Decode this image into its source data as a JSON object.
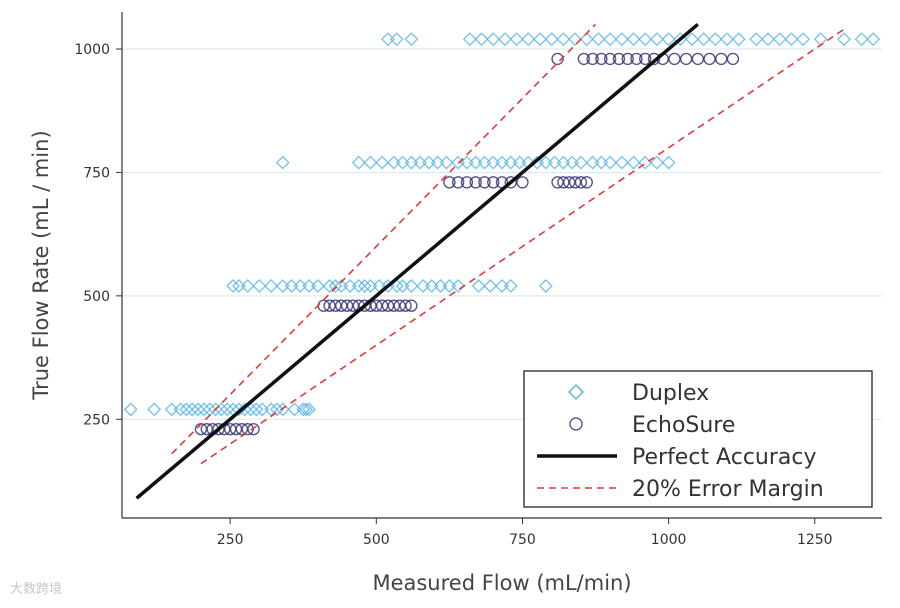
{
  "chart_data": {
    "type": "scatter",
    "xlabel": "Measured Flow (mL/min)",
    "ylabel": "True Flow Rate (mL / min)",
    "xlim": [
      65,
      1365
    ],
    "ylim": [
      50,
      1075
    ],
    "xticks": [
      250,
      500,
      750,
      1000,
      1250
    ],
    "yticks": [
      250,
      500,
      750,
      1000
    ],
    "grid": "horizontal",
    "legend_position": "bottom-right",
    "series": [
      {
        "name": "Duplex",
        "marker": "diamond",
        "color": "#5bb7e8",
        "groups": [
          {
            "y": 270,
            "x": [
              80,
              120,
              150,
              165,
              175,
              185,
              195,
              205,
              215,
              225,
              235,
              245,
              255,
              265,
              275,
              285,
              295,
              305,
              320,
              330,
              340,
              360,
              375,
              380,
              385
            ]
          },
          {
            "y": 520,
            "x": [
              255,
              265,
              280,
              300,
              320,
              340,
              355,
              370,
              385,
              400,
              420,
              430,
              440,
              455,
              470,
              480,
              490,
              505,
              520,
              535,
              545,
              560,
              580,
              595,
              610,
              625,
              640,
              675,
              695,
              715,
              730,
              790
            ]
          },
          {
            "y": 770,
            "x": [
              340,
              470,
              490,
              510,
              530,
              545,
              560,
              575,
              590,
              605,
              620,
              640,
              655,
              670,
              685,
              700,
              715,
              730,
              745,
              760,
              775,
              790,
              805,
              820,
              835,
              850,
              870,
              885,
              900,
              920,
              940,
              960,
              980,
              1000
            ]
          },
          {
            "y": 1020,
            "x": [
              520,
              535,
              560,
              660,
              680,
              700,
              720,
              740,
              760,
              780,
              800,
              820,
              840,
              860,
              880,
              900,
              920,
              940,
              960,
              980,
              1000,
              1020,
              1040,
              1060,
              1080,
              1100,
              1120,
              1150,
              1170,
              1190,
              1210,
              1230,
              1260,
              1300,
              1330,
              1350
            ]
          }
        ]
      },
      {
        "name": "EchoSure",
        "marker": "circle",
        "color": "#2c2c6e",
        "groups": [
          {
            "y": 230,
            "x": [
              200,
              210,
              220,
              230,
              240,
              250,
              260,
              270,
              280,
              290
            ]
          },
          {
            "y": 480,
            "x": [
              410,
              420,
              430,
              440,
              450,
              460,
              470,
              480,
              490,
              500,
              510,
              520,
              530,
              540,
              550,
              560
            ]
          },
          {
            "y": 730,
            "x": [
              625,
              640,
              655,
              670,
              685,
              700,
              715,
              730,
              750,
              810,
              820,
              830,
              840,
              850,
              860
            ]
          },
          {
            "y": 980,
            "x": [
              810,
              855,
              870,
              885,
              900,
              915,
              930,
              945,
              960,
              975,
              990,
              1010,
              1030,
              1050,
              1070,
              1090,
              1110
            ]
          }
        ]
      },
      {
        "name": "Perfect Accuracy",
        "style": "solid-line",
        "color": "#111111",
        "x": [
          90,
          1050
        ],
        "y": [
          90,
          1050
        ]
      },
      {
        "name": "20% Error Margin",
        "style": "dashed-line",
        "color": "#e03a3a",
        "lines": [
          {
            "x": [
              150,
              875
            ],
            "y": [
              180,
              1050
            ]
          },
          {
            "x": [
              200,
              1300
            ],
            "y": [
              160,
              1040
            ]
          }
        ]
      }
    ]
  },
  "watermark": "大数跨境"
}
